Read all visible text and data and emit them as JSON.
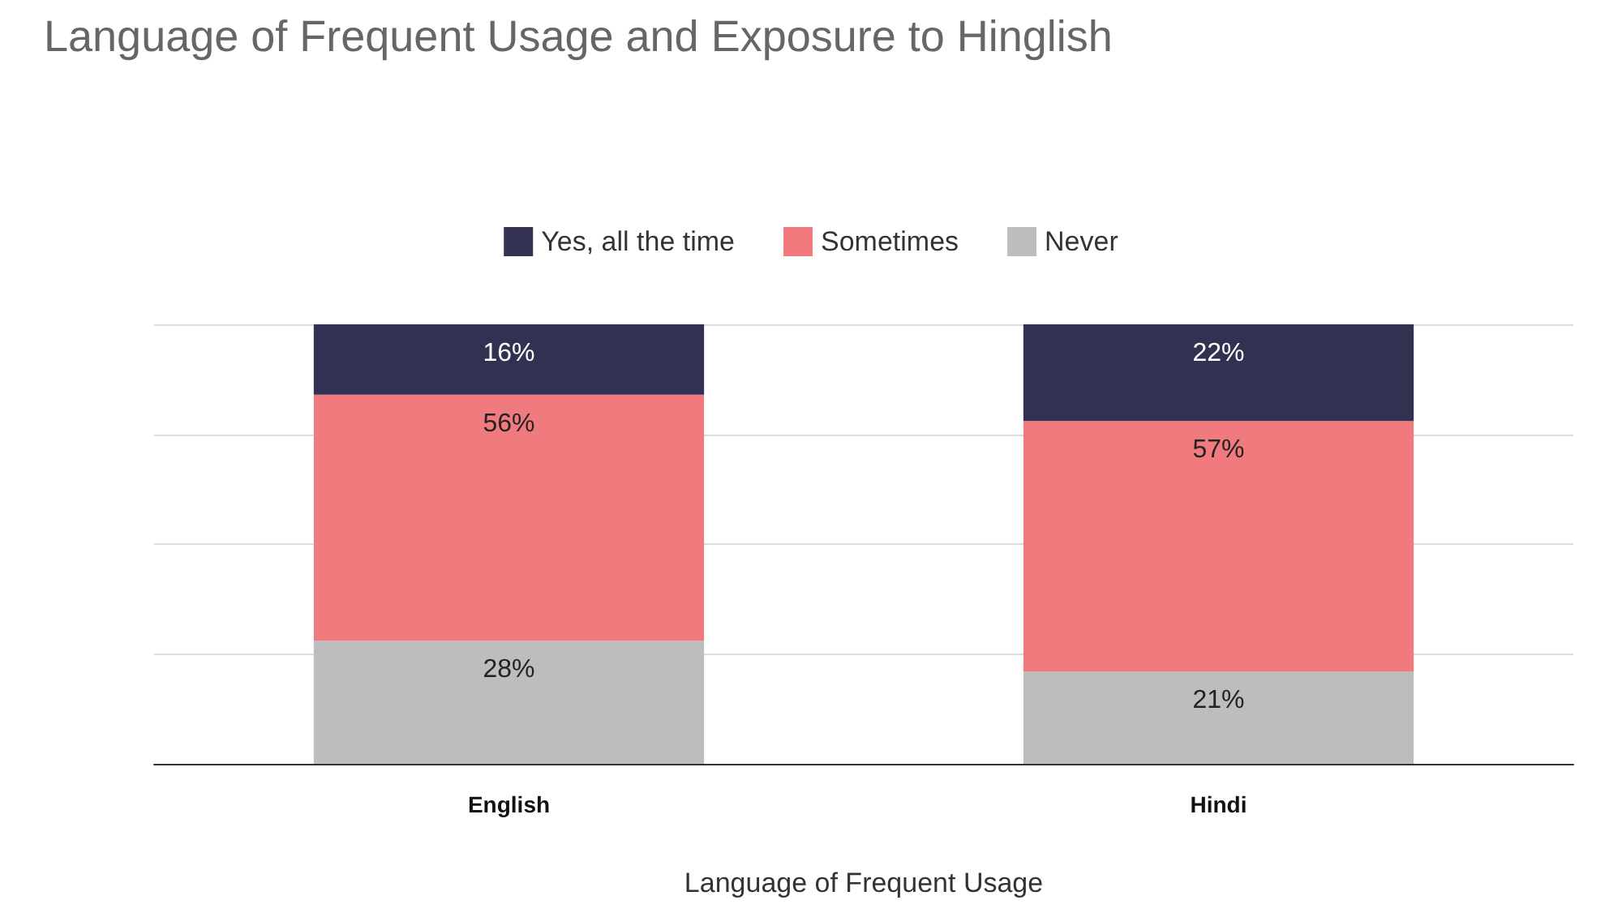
{
  "chart_data": {
    "type": "bar",
    "stacked": true,
    "title": "Language of Frequent Usage and Exposure to Hinglish",
    "xlabel": "Language of Frequent Usage",
    "categories": [
      "English",
      "Hindi"
    ],
    "series": [
      {
        "name": "Never",
        "color": "#bdbdbd",
        "values": [
          28,
          21
        ],
        "value_labels": [
          "28%",
          "21%"
        ]
      },
      {
        "name": "Sometimes",
        "color": "#f07a7e",
        "values": [
          56,
          57
        ],
        "value_labels": [
          "56%",
          "57%"
        ]
      },
      {
        "name": "Yes, all the time",
        "color": "#333152",
        "values": [
          16,
          22
        ],
        "value_labels": [
          "16%",
          "22%"
        ]
      }
    ],
    "ylim": [
      0,
      100
    ],
    "yticks": [
      {
        "value": 0,
        "label": null
      },
      {
        "value": 25,
        "label": null
      },
      {
        "value": 50,
        "label": null
      },
      {
        "value": 75,
        "label": null
      },
      {
        "value": 100,
        "label": null
      }
    ],
    "tick_labels": "x",
    "grid": "y",
    "legend": "top"
  }
}
